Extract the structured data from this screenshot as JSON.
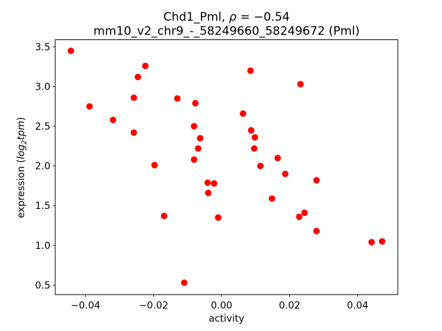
{
  "title": {
    "line1_prefix": "Chd1_Pml, ",
    "line1_rho": "ρ",
    "line1_suffix": " = −0.54",
    "line2": "mm10_v2_chr9_-_58249660_58249672 (Pml)"
  },
  "axes": {
    "xlabel": "activity",
    "ylabel_prefix": "expression (",
    "ylabel_log": "log",
    "ylabel_sub": "2",
    "ylabel_tpm": "tpm",
    "ylabel_suffix": ")"
  },
  "chart_data": {
    "type": "scatter",
    "title": "Chd1_Pml, ρ = −0.54",
    "subtitle": "mm10_v2_chr9_-_58249660_58249672 (Pml)",
    "xlabel": "activity",
    "ylabel": "expression (log2 tpm)",
    "grid": false,
    "legend": false,
    "marker": {
      "shape": "circle",
      "color": "#ff0000",
      "radius_px": 4.7
    },
    "xlim": [
      -0.0489,
      0.0518
    ],
    "ylim": [
      0.38,
      3.59
    ],
    "x_ticks": {
      "values": [
        -0.04,
        -0.02,
        0.0,
        0.02,
        0.04
      ],
      "labels": [
        "−0.04",
        "−0.02",
        "0.00",
        "0.02",
        "0.04"
      ]
    },
    "y_ticks": {
      "values": [
        0.5,
        1.0,
        1.5,
        2.0,
        2.5,
        3.0,
        3.5
      ],
      "labels": [
        "0.5",
        "1.0",
        "1.5",
        "2.0",
        "2.5",
        "3.0",
        "3.5"
      ]
    },
    "points": [
      [
        -0.0443,
        3.45
      ],
      [
        -0.0388,
        2.75
      ],
      [
        -0.0319,
        2.58
      ],
      [
        -0.0258,
        2.86
      ],
      [
        -0.0258,
        2.42
      ],
      [
        -0.0246,
        3.12
      ],
      [
        -0.0224,
        3.26
      ],
      [
        -0.0197,
        2.01
      ],
      [
        -0.0169,
        1.37
      ],
      [
        -0.013,
        2.85
      ],
      [
        -0.011,
        0.53
      ],
      [
        -0.0081,
        2.5
      ],
      [
        -0.0081,
        2.08
      ],
      [
        -0.0077,
        2.79
      ],
      [
        -0.0069,
        2.22
      ],
      [
        -0.0063,
        2.35
      ],
      [
        -0.0041,
        1.79
      ],
      [
        -0.0039,
        1.66
      ],
      [
        -0.0022,
        1.78
      ],
      [
        -0.001,
        1.35
      ],
      [
        0.0063,
        2.66
      ],
      [
        0.0085,
        3.2
      ],
      [
        0.0087,
        2.45
      ],
      [
        0.0096,
        2.22
      ],
      [
        0.0098,
        2.36
      ],
      [
        0.0114,
        2.0
      ],
      [
        0.0148,
        1.59
      ],
      [
        0.0165,
        2.1
      ],
      [
        0.0187,
        1.9
      ],
      [
        0.0228,
        1.36
      ],
      [
        0.0232,
        3.03
      ],
      [
        0.0244,
        1.41
      ],
      [
        0.0279,
        1.82
      ],
      [
        0.0279,
        1.18
      ],
      [
        0.0441,
        1.04
      ],
      [
        0.0472,
        1.05
      ]
    ]
  }
}
